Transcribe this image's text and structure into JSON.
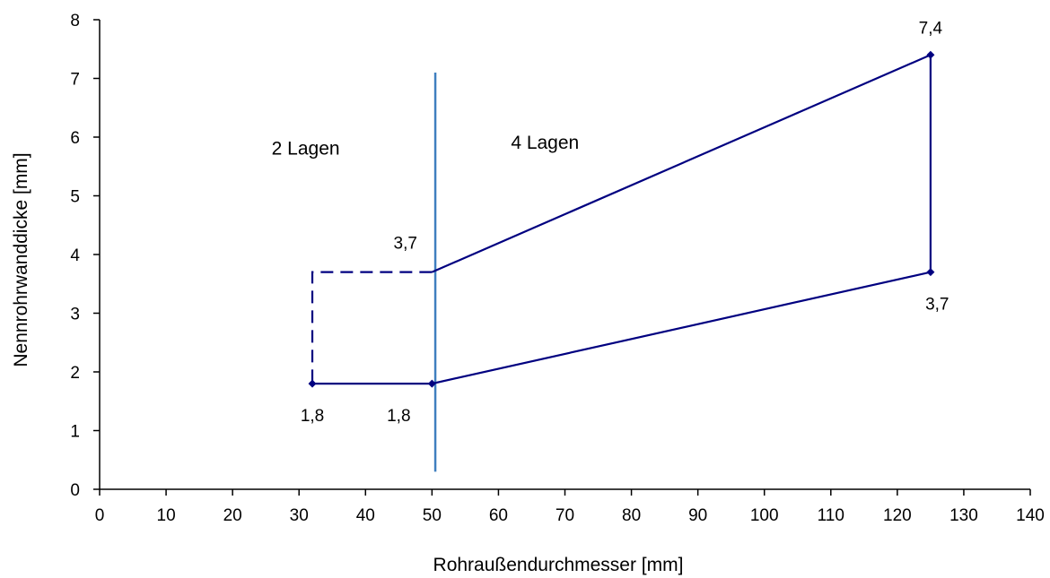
{
  "chart_data": {
    "type": "line",
    "xlabel": "Rohraußendurchmesser [mm]",
    "ylabel": "Nennrohrwanddicke [mm]",
    "xlim": [
      0,
      140
    ],
    "ylim": [
      0,
      8
    ],
    "xticks": [
      "0",
      "10",
      "20",
      "30",
      "40",
      "50",
      "60",
      "70",
      "80",
      "90",
      "100",
      "110",
      "120",
      "130",
      "140"
    ],
    "yticks": [
      "0",
      "1",
      "2",
      "3",
      "4",
      "5",
      "6",
      "7",
      "8"
    ],
    "grid": false,
    "series": [
      {
        "points": [
          [
            32,
            1.8
          ],
          [
            50,
            1.8
          ],
          [
            125,
            3.7
          ],
          [
            125,
            7.4
          ],
          [
            50,
            3.7
          ]
        ],
        "style": "solid",
        "color": "#000080"
      },
      {
        "points": [
          [
            50,
            3.7
          ],
          [
            32,
            3.7
          ],
          [
            32,
            1.8
          ]
        ],
        "style": "dashed",
        "color": "#000080"
      }
    ],
    "markers": [
      [
        32,
        1.8
      ],
      [
        50,
        1.8
      ],
      [
        125,
        3.7
      ],
      [
        125,
        7.4
      ]
    ],
    "vertical_line": {
      "x": 50.5,
      "y_from": 0.3,
      "y_to": 7.1,
      "color": "#3f7fbf"
    },
    "region_labels": [
      {
        "text": "2 Lagen",
        "x": 31,
        "y": 5.7
      },
      {
        "text": "4 Lagen",
        "x": 67,
        "y": 5.8
      }
    ],
    "data_labels": [
      {
        "text": "1,8",
        "x": 32,
        "y": 1.8,
        "position": "below"
      },
      {
        "text": "1,8",
        "x": 45,
        "y": 1.8,
        "position": "below"
      },
      {
        "text": "3,7",
        "x": 46,
        "y": 3.7,
        "position": "above-left"
      },
      {
        "text": "3,7",
        "x": 126,
        "y": 3.7,
        "position": "below"
      },
      {
        "text": "7,4",
        "x": 125,
        "y": 7.4,
        "position": "above"
      }
    ]
  }
}
